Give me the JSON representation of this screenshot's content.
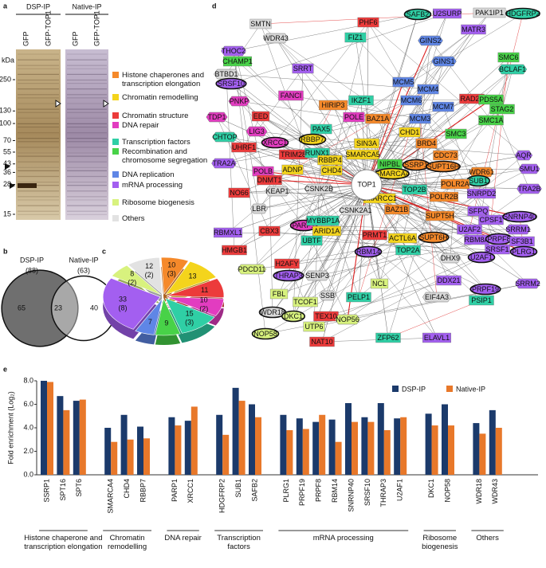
{
  "chart_data": [
    {
      "panel": "a",
      "type": "gel",
      "headers": [
        "DSP-IP",
        "Native-IP"
      ],
      "lanes": [
        "GFP",
        "GFP-TOP1",
        "GFP",
        "GFP-TOP1"
      ],
      "axis_label": "kDa",
      "yticks": [
        250,
        130,
        100,
        70,
        55,
        43,
        36,
        28,
        15
      ],
      "ylim": [
        15,
        250
      ],
      "log_scale": true,
      "legend": [
        {
          "label": "Histone chaperones and transcription elongation",
          "color": "#f5892a"
        },
        {
          "label": "Chromatin remodelling",
          "color": "#f4d41c"
        },
        {
          "label": "Chromatin structure",
          "color": "#ec3b3b"
        },
        {
          "label": "DNA repair",
          "color": "#e23cc0"
        },
        {
          "label": "Transcription factors",
          "color": "#2fcfa5"
        },
        {
          "label": "Recombination and chromosome segregation",
          "color": "#48d248"
        },
        {
          "label": "DNA replication",
          "color": "#5f86e6"
        },
        {
          "label": "mRNA processing",
          "color": "#a35ff0"
        },
        {
          "label": "Ribosome biogenesis",
          "color": "#d8f27e"
        },
        {
          "label": "Others",
          "color": "#e2e2e2"
        }
      ]
    },
    {
      "panel": "b",
      "type": "venn",
      "sets": [
        {
          "name": "DSP-IP",
          "size": 88,
          "size_label": "(88)",
          "only": 65
        },
        {
          "name": "Native-IP",
          "size": 63,
          "size_label": "(63)",
          "only": 40
        }
      ],
      "overlap": 23
    },
    {
      "panel": "c",
      "type": "pie",
      "values": [
        10,
        13,
        11,
        10,
        15,
        9,
        7,
        33,
        8,
        12
      ],
      "colors": [
        "#f5892a",
        "#f4d41c",
        "#ec3b3b",
        "#e23cc0",
        "#2fcfa5",
        "#48d248",
        "#5f86e6",
        "#a35ff0",
        "#d8f27e",
        "#e2e2e2"
      ],
      "sub_values": [
        3,
        null,
        null,
        2,
        3,
        null,
        null,
        8,
        2,
        2
      ],
      "sub_labels": [
        "(3)",
        null,
        null,
        "(2)",
        "(3)",
        null,
        null,
        "(8)",
        "(2)",
        "(2)"
      ]
    },
    {
      "panel": "d",
      "type": "network",
      "center": "TOP1",
      "nodes": [
        {
          "label": "SMTN",
          "color": "#d9d9d9",
          "shape": "rect"
        },
        {
          "label": "SAFB2",
          "color": "#2fcfa5",
          "shape": "ellipse"
        },
        {
          "label": "U2SURP",
          "color": "#a35ff0",
          "shape": "rect"
        },
        {
          "label": "PAK1IP1",
          "color": "#d9d9d9",
          "shape": "rect"
        },
        {
          "label": "HDGFRP2",
          "color": "#2fcfa5",
          "shape": "ellipse"
        },
        {
          "label": "PHF6",
          "color": "#ec3b3b",
          "shape": "rect"
        },
        {
          "label": "MATR3",
          "color": "#a35ff0",
          "shape": "rect"
        },
        {
          "label": "WDR43",
          "color": "#d9d9d9",
          "shape": "hex"
        },
        {
          "label": "FIZ1",
          "color": "#2fcfa5",
          "shape": "rect"
        },
        {
          "label": "GINS2",
          "color": "#5f86e6",
          "shape": "hex"
        },
        {
          "label": "THOC2",
          "color": "#a35ff0",
          "shape": "hex"
        },
        {
          "label": "SMC6",
          "color": "#48d248",
          "shape": "rect"
        },
        {
          "label": "CHAMP1",
          "color": "#48d248",
          "shape": "rect"
        },
        {
          "label": "BTBD1",
          "color": "#d9d9d9",
          "shape": "hex"
        },
        {
          "label": "GINS1",
          "color": "#5f86e6",
          "shape": "hex"
        },
        {
          "label": "BCLAF1",
          "color": "#2fcfa5",
          "shape": "hex"
        },
        {
          "label": "SRRT",
          "color": "#a35ff0",
          "shape": "rect"
        },
        {
          "label": "SRSF10",
          "color": "#a35ff0",
          "shape": "ellipse"
        },
        {
          "label": "MCM5",
          "color": "#5f86e6",
          "shape": "rect"
        },
        {
          "label": "MCM4",
          "color": "#5f86e6",
          "shape": "rect"
        },
        {
          "label": "FANCI",
          "color": "#e23cc0",
          "shape": "rect"
        },
        {
          "label": "IKZF1",
          "color": "#2fcfa5",
          "shape": "rect"
        },
        {
          "label": "HIRIP3",
          "color": "#f5892a",
          "shape": "rect"
        },
        {
          "label": "PNKP",
          "color": "#e23cc0",
          "shape": "hex"
        },
        {
          "label": "MCM6",
          "color": "#5f86e6",
          "shape": "rect"
        },
        {
          "label": "MCM7",
          "color": "#5f86e6",
          "shape": "rect"
        },
        {
          "label": "RAD21",
          "color": "#ec3b3b",
          "shape": "rect"
        },
        {
          "label": "PDS5A",
          "color": "#48d248",
          "shape": "rect"
        },
        {
          "label": "STAG2",
          "color": "#48d248",
          "shape": "rect"
        },
        {
          "label": "TDP1",
          "color": "#e23cc0",
          "shape": "hex"
        },
        {
          "label": "EED",
          "color": "#ec3b3b",
          "shape": "rect"
        },
        {
          "label": "POLE",
          "color": "#e23cc0",
          "shape": "rect"
        },
        {
          "label": "BAZ1A",
          "color": "#f5892a",
          "shape": "rect"
        },
        {
          "label": "MCM3",
          "color": "#5f86e6",
          "shape": "rect"
        },
        {
          "label": "PAX5",
          "color": "#2fcfa5",
          "shape": "rect"
        },
        {
          "label": "CHD1",
          "color": "#f4d41c",
          "shape": "rect"
        },
        {
          "label": "SMC1A",
          "color": "#48d248",
          "shape": "rect"
        },
        {
          "label": "LIG3",
          "color": "#e23cc0",
          "shape": "hex"
        },
        {
          "label": "XRCC1",
          "color": "#e23cc0",
          "shape": "ellipse"
        },
        {
          "label": "RBBP7",
          "color": "#f4d41c",
          "shape": "ellipse"
        },
        {
          "label": "SIN3A",
          "color": "#f4d41c",
          "shape": "rect"
        },
        {
          "label": "SMC3",
          "color": "#48d248",
          "shape": "rect"
        },
        {
          "label": "CHTOP",
          "color": "#2fcfa5",
          "shape": "hex"
        },
        {
          "label": "UHRF1",
          "color": "#ec3b3b",
          "shape": "rect"
        },
        {
          "label": "TRIM28",
          "color": "#ec3b3b",
          "shape": "rect"
        },
        {
          "label": "RUNX1",
          "color": "#2fcfa5",
          "shape": "rect"
        },
        {
          "label": "SMARCA5",
          "color": "#f4d41c",
          "shape": "rect"
        },
        {
          "label": "BRD4",
          "color": "#f5892a",
          "shape": "rect"
        },
        {
          "label": "TRA2A",
          "color": "#a35ff0",
          "shape": "hex"
        },
        {
          "label": "RBBP4",
          "color": "#f4d41c",
          "shape": "rect"
        },
        {
          "label": "CHD4",
          "color": "#f4d41c",
          "shape": "rect"
        },
        {
          "label": "NIPBL",
          "color": "#48d248",
          "shape": "rect"
        },
        {
          "label": "CDC73",
          "color": "#f5892a",
          "shape": "rect"
        },
        {
          "label": "AQR",
          "color": "#a35ff0",
          "shape": "hex"
        },
        {
          "label": "POLB",
          "color": "#e23cc0",
          "shape": "rect"
        },
        {
          "label": "ADNP",
          "color": "#f4d41c",
          "shape": "rect"
        },
        {
          "label": "SMARCA4",
          "color": "#f4d41c",
          "shape": "ellipse"
        },
        {
          "label": "SSRP1",
          "color": "#f5892a",
          "shape": "ellipse"
        },
        {
          "label": "SUPT16H",
          "color": "#f5892a",
          "shape": "ellipse"
        },
        {
          "label": "WDR61",
          "color": "#f5892a",
          "shape": "hex"
        },
        {
          "label": "SMU1",
          "color": "#a35ff0",
          "shape": "hex"
        },
        {
          "label": "SUB1",
          "color": "#2fcfa5",
          "shape": "ellipse"
        },
        {
          "label": "NO66",
          "color": "#ec3b3b",
          "shape": "rect"
        },
        {
          "label": "DNMT1",
          "color": "#ec3b3b",
          "shape": "rect"
        },
        {
          "label": "KEAP1",
          "color": "#d9d9d9",
          "shape": "hex"
        },
        {
          "label": "CSNK2B",
          "color": "#d9d9d9",
          "shape": "hex"
        },
        {
          "label": "TOP2B",
          "color": "#2fcfa5",
          "shape": "rect"
        },
        {
          "label": "POLR2A",
          "color": "#f5892a",
          "shape": "rect"
        },
        {
          "label": "SNRPD2",
          "color": "#a35ff0",
          "shape": "rect"
        },
        {
          "label": "TRA2B",
          "color": "#a35ff0",
          "shape": "hex"
        },
        {
          "label": "CSNK2A1",
          "color": "#d9d9d9",
          "shape": "hex"
        },
        {
          "label": "SMARCC1",
          "color": "#f4d41c",
          "shape": "rect"
        },
        {
          "label": "POLR2B",
          "color": "#f5892a",
          "shape": "rect"
        },
        {
          "label": "LBR",
          "color": "#d9d9d9",
          "shape": "hex"
        },
        {
          "label": "CBX3",
          "color": "#ec3b3b",
          "shape": "rect"
        },
        {
          "label": "PARP1",
          "color": "#e23cc0",
          "shape": "ellipse"
        },
        {
          "label": "MYBBP1A",
          "color": "#2fcfa5",
          "shape": "rect"
        },
        {
          "label": "BAZ1B",
          "color": "#f5892a",
          "shape": "rect"
        },
        {
          "label": "SUPT5H",
          "color": "#f5892a",
          "shape": "rect"
        },
        {
          "label": "SFPQ",
          "color": "#a35ff0",
          "shape": "rect"
        },
        {
          "label": "CPSF1",
          "color": "#a35ff0",
          "shape": "rect"
        },
        {
          "label": "SNRNP40",
          "color": "#a35ff0",
          "shape": "ellipse"
        },
        {
          "label": "RBMXL1",
          "color": "#a35ff0",
          "shape": "rect"
        },
        {
          "label": "ARID1A",
          "color": "#f4d41c",
          "shape": "rect"
        },
        {
          "label": "UBTF",
          "color": "#2fcfa5",
          "shape": "rect"
        },
        {
          "label": "PRMT1",
          "color": "#ec3b3b",
          "shape": "rect"
        },
        {
          "label": "ACTL6A",
          "color": "#f4d41c",
          "shape": "rect"
        },
        {
          "label": "SUPT6H",
          "color": "#f5892a",
          "shape": "ellipse"
        },
        {
          "label": "U2AF2",
          "color": "#a35ff0",
          "shape": "rect"
        },
        {
          "label": "RBM8A",
          "color": "#a35ff0",
          "shape": "rect"
        },
        {
          "label": "PRPF8",
          "color": "#a35ff0",
          "shape": "ellipse"
        },
        {
          "label": "SRSF1",
          "color": "#a35ff0",
          "shape": "rect"
        },
        {
          "label": "SRRM1",
          "color": "#a35ff0",
          "shape": "hex"
        },
        {
          "label": "SF3B1",
          "color": "#a35ff0",
          "shape": "rect"
        },
        {
          "label": "HMGB1",
          "color": "#ec3b3b",
          "shape": "rect"
        },
        {
          "label": "TOP2A",
          "color": "#2fcfa5",
          "shape": "rect"
        },
        {
          "label": "RBM14",
          "color": "#a35ff0",
          "shape": "ellipse"
        },
        {
          "label": "DHX9",
          "color": "#d9d9d9",
          "shape": "hex"
        },
        {
          "label": "U2AF1",
          "color": "#a35ff0",
          "shape": "ellipse"
        },
        {
          "label": "PLRG1",
          "color": "#a35ff0",
          "shape": "ellipse"
        },
        {
          "label": "H2AFY",
          "color": "#ec3b3b",
          "shape": "rect"
        },
        {
          "label": "PDCD11",
          "color": "#d8f27e",
          "shape": "hex"
        },
        {
          "label": "THRAP3",
          "color": "#a35ff0",
          "shape": "ellipse"
        },
        {
          "label": "SENP3",
          "color": "#d9d9d9",
          "shape": "hex"
        },
        {
          "label": "DDX21",
          "color": "#a35ff0",
          "shape": "rect"
        },
        {
          "label": "SRRM2",
          "color": "#a35ff0",
          "shape": "hex"
        },
        {
          "label": "PRPF19",
          "color": "#a35ff0",
          "shape": "ellipse"
        },
        {
          "label": "NCL",
          "color": "#d8f27e",
          "shape": "rect"
        },
        {
          "label": "FBL",
          "color": "#d8f27e",
          "shape": "rect"
        },
        {
          "label": "SSB",
          "color": "#d9d9d9",
          "shape": "hex"
        },
        {
          "label": "PELP1",
          "color": "#2fcfa5",
          "shape": "rect"
        },
        {
          "label": "EIF4A3",
          "color": "#d9d9d9",
          "shape": "hex"
        },
        {
          "label": "PSIP1",
          "color": "#2fcfa5",
          "shape": "rect"
        },
        {
          "label": "TCOF1",
          "color": "#d8f27e",
          "shape": "rect"
        },
        {
          "label": "WDR18",
          "color": "#d9d9d9",
          "shape": "ellipse"
        },
        {
          "label": "DKC1",
          "color": "#d8f27e",
          "shape": "ellipse"
        },
        {
          "label": "TEX10",
          "color": "#ec3b3b",
          "shape": "rect"
        },
        {
          "label": "NOP56",
          "color": "#d8f27e",
          "shape": "hex"
        },
        {
          "label": "UTP6",
          "color": "#d8f27e",
          "shape": "rect"
        },
        {
          "label": "NAT10",
          "color": "#ec3b3b",
          "shape": "rect"
        },
        {
          "label": "NOP58",
          "color": "#d8f27e",
          "shape": "ellipse"
        },
        {
          "label": "ZFP62",
          "color": "#2fcfa5",
          "shape": "rect"
        },
        {
          "label": "ELAVL1",
          "color": "#a35ff0",
          "shape": "rect"
        }
      ]
    },
    {
      "panel": "e",
      "type": "bar",
      "ylabel": "Fold enrichment (Log₂)",
      "ylim": [
        0,
        8
      ],
      "yticks": [
        {
          "value": 0,
          "label": "0.0"
        },
        {
          "value": 2,
          "label": "2.0"
        },
        {
          "value": 4,
          "label": "4.0"
        },
        {
          "value": 6,
          "label": "6.0"
        },
        {
          "value": 8,
          "label": "8.0"
        }
      ],
      "legend": "top-right",
      "groups": [
        {
          "label": "Histone chaperone and transcription elongation",
          "categories": [
            "SSRP1",
            "SPT16",
            "SPT6"
          ]
        },
        {
          "label": "Chromatin remodelling",
          "categories": [
            "SMARCA4",
            "CHD4",
            "RBBP7"
          ]
        },
        {
          "label": "DNA repair",
          "categories": [
            "PARP1",
            "XRCC1"
          ]
        },
        {
          "label": "Transcription factors",
          "categories": [
            "HDGFRP2",
            "SUB1",
            "SAFB2"
          ]
        },
        {
          "label": "mRNA processing",
          "categories": [
            "PLRG1",
            "PRPF19",
            "PRPF8",
            "RBM14",
            "SNRNP40",
            "SRSF10",
            "THRAP3",
            "U2AF1"
          ]
        },
        {
          "label": "Ribosome biogenesis",
          "categories": [
            "DKC1",
            "NOP58"
          ]
        },
        {
          "label": "Others",
          "categories": [
            "WDR18",
            "WDR43"
          ]
        }
      ],
      "series": [
        {
          "name": "DSP-IP",
          "color": "#1b3a6b",
          "values": [
            8.0,
            6.7,
            6.3,
            4.0,
            5.1,
            4.1,
            4.9,
            4.6,
            5.1,
            7.4,
            6.0,
            5.1,
            4.8,
            4.5,
            4.7,
            6.1,
            4.9,
            6.1,
            4.8,
            5.2,
            6.0,
            4.4,
            5.5
          ]
        },
        {
          "name": "Native-IP",
          "color": "#e8782a",
          "values": [
            7.9,
            5.5,
            6.4,
            2.8,
            3.0,
            3.1,
            4.2,
            5.8,
            3.4,
            6.3,
            4.9,
            3.8,
            3.9,
            5.1,
            2.8,
            4.5,
            4.5,
            3.8,
            4.9,
            4.2,
            4.2,
            3.5,
            4.0
          ]
        }
      ]
    }
  ]
}
